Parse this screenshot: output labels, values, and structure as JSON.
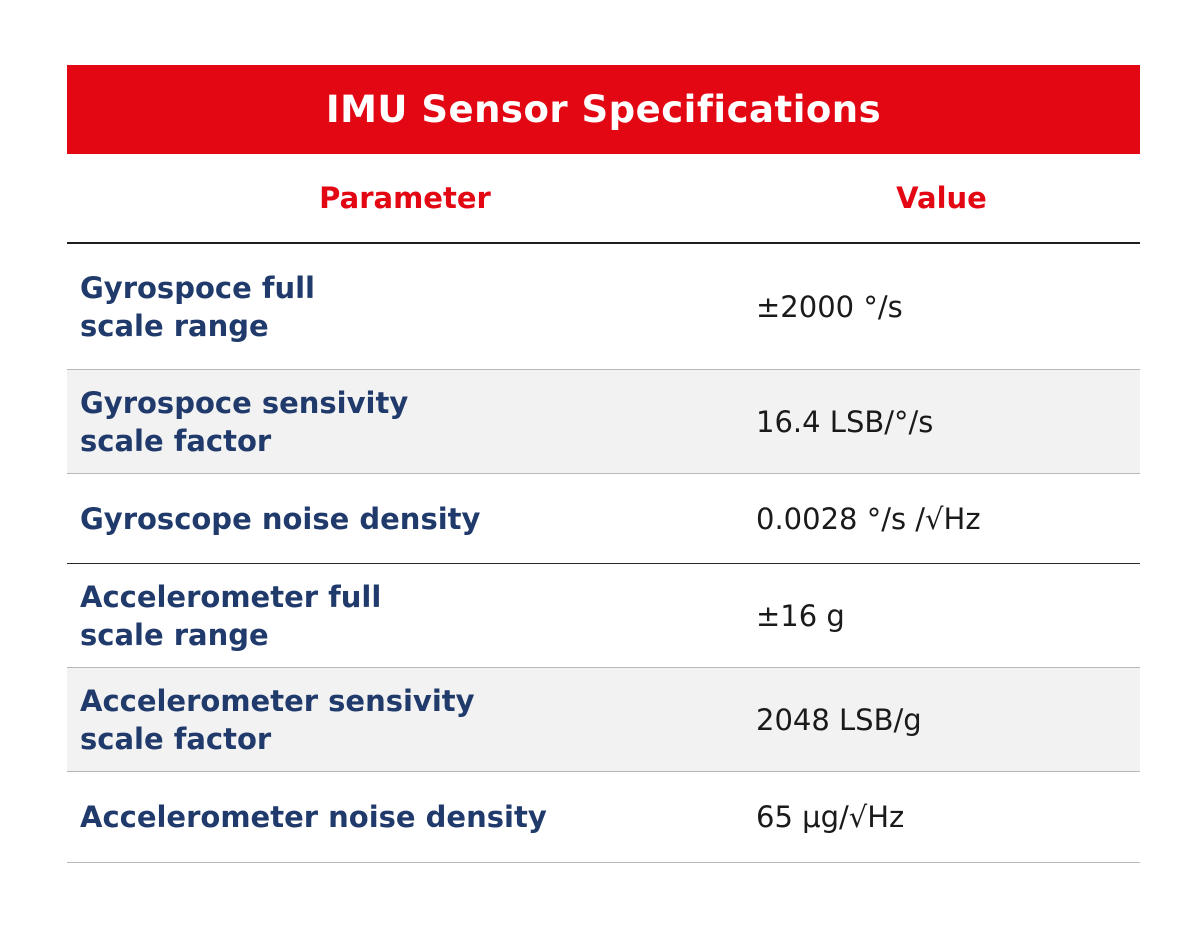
{
  "title": "IMU Sensor Specifications",
  "columns": {
    "parameter": "Parameter",
    "value": "Value"
  },
  "rows": [
    {
      "param_lines": [
        "Gyrospoce full",
        "scale range"
      ],
      "value": "±2000 °/s"
    },
    {
      "param_lines": [
        "Gyrospoce sensivity",
        "scale factor"
      ],
      "value": "16.4 LSB/°/s"
    },
    {
      "param_lines": [
        "Gyroscope noise density"
      ],
      "value": "0.0028 °/s /√Hz"
    },
    {
      "param_lines": [
        "Accelerometer full",
        "scale range"
      ],
      "value": "±16 g"
    },
    {
      "param_lines": [
        "Accelerometer sensivity",
        "scale factor"
      ],
      "value": "2048 LSB/g"
    },
    {
      "param_lines": [
        "Accelerometer noise density"
      ],
      "value": "65 μg/√Hz"
    }
  ],
  "colors": {
    "accent": "#e30613",
    "parameter_text": "#1f3a6b",
    "shaded_row": "#f2f2f2"
  }
}
